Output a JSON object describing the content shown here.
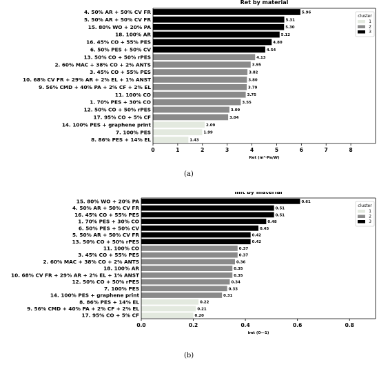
{
  "colors": {
    "cluster_1": "#e3e9df",
    "cluster_2": "#8a8a8a",
    "cluster_3": "#000000",
    "axis": "#000000"
  },
  "chart_data": [
    {
      "type": "bar",
      "orientation": "horizontal",
      "title": "Ret by material",
      "xlabel": "Ret  (m²·Pa/W)",
      "xlim": [
        0,
        9
      ],
      "xticks": [
        0,
        1,
        2,
        3,
        4,
        5,
        6,
        7,
        8
      ],
      "legend": {
        "title": "cluster",
        "placement": "top-right",
        "entries": [
          "1",
          "2",
          "3"
        ]
      },
      "caption": "(a)",
      "categories": [
        "4. 50% AR + 50% CV FR",
        "5. 50% AR + 50% CV FR",
        "15. 80% WO + 20% PA",
        "18. 100% AR",
        "16. 45% CO + 55% PES",
        "6. 50% PES + 50% CV",
        "13. 50% CO + 50% rPES",
        "2. 60% MAC + 38% CO + 2% ANTS",
        "3. 45% CO + 55% PES",
        "10. 68% CV FR + 29% AR + 2% EL + 1% ANST",
        "9. 56% CMD + 40% PA + 2% CF + 2% EL",
        "11. 100% CO",
        "1. 70% PES + 30% CO",
        "12. 50% CO + 50% rPES",
        "17. 95% CO + 5% CF",
        "14. 100% PES + graphene print",
        "7. 100% PES",
        "8. 86% PES + 14% EL"
      ],
      "values": [
        5.96,
        5.31,
        5.3,
        5.12,
        4.8,
        4.54,
        4.13,
        3.95,
        3.82,
        3.8,
        3.79,
        3.75,
        3.55,
        3.09,
        3.04,
        2.09,
        1.99,
        1.43
      ],
      "value_labels": [
        "5.96",
        "5.31",
        "5.30",
        "5.12",
        "4.80",
        "4.54",
        "4.13",
        "3.95",
        "3.82",
        "3.80",
        "3.79",
        "3.75",
        "3.55",
        "3.09",
        "3.04",
        "2.09",
        "1.99",
        "1.43"
      ],
      "clusters": [
        3,
        3,
        3,
        3,
        3,
        3,
        2,
        2,
        2,
        2,
        2,
        2,
        2,
        2,
        2,
        1,
        1,
        1
      ]
    },
    {
      "type": "bar",
      "orientation": "horizontal",
      "title": "imt by material",
      "xlabel": "imt  (0—1)",
      "xlim": [
        0,
        0.9
      ],
      "xticks": [
        0.0,
        0.2,
        0.4,
        0.6,
        0.8
      ],
      "xtick_labels": [
        "0.0",
        "0.2",
        "0.4",
        "0.6",
        "0.8"
      ],
      "legend": {
        "title": "cluster",
        "placement": "top-right",
        "entries": [
          "1",
          "2",
          "3"
        ]
      },
      "caption": "(b)",
      "categories": [
        "15. 80% WO + 20% PA",
        "4. 50% AR + 50% CV FR",
        "16. 45% CO + 55% PES",
        "1. 70% PES + 30% CO",
        "6. 50% PES + 50% CV",
        "5. 50% AR + 50% CV FR",
        "13. 50% CO + 50% rPES",
        "11. 100% CO",
        "3. 45% CO + 55% PES",
        "2. 60% MAC + 38% CO + 2% ANTS",
        "18. 100% AR",
        "10. 68% CV FR + 29% AR + 2% EL + 1% ANST",
        "12. 50% CO + 50% rPES",
        "7. 100% PES",
        "14. 100% PES + graphene print",
        "8. 86% PES + 14% EL",
        "9. 56% CMD + 40% PA + 2% CF + 2% EL",
        "17. 95% CO + 5% CF"
      ],
      "values": [
        0.61,
        0.51,
        0.51,
        0.48,
        0.45,
        0.42,
        0.42,
        0.37,
        0.37,
        0.36,
        0.35,
        0.35,
        0.34,
        0.33,
        0.31,
        0.22,
        0.21,
        0.2
      ],
      "value_labels": [
        "0.61",
        "0.51",
        "0.51",
        "0.48",
        "0.45",
        "0.42",
        "0.42",
        "0.37",
        "0.37",
        "0.36",
        "0.35",
        "0.35",
        "0.34",
        "0.33",
        "0.31",
        "0.22",
        "0.21",
        "0.20"
      ],
      "clusters": [
        3,
        3,
        3,
        3,
        3,
        3,
        3,
        2,
        2,
        2,
        2,
        2,
        2,
        2,
        2,
        1,
        1,
        1
      ]
    }
  ]
}
